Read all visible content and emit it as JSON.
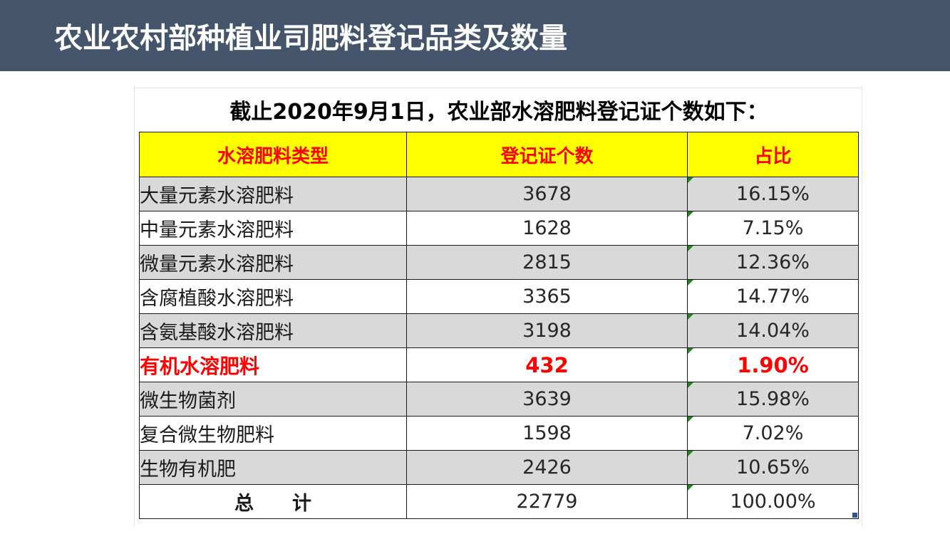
{
  "header": {
    "title": "农业农村部种植业司肥料登记品类及数量",
    "bg_color": "#44546a"
  },
  "caption": "截止2020年9月1日，农业部水溶肥料登记证个数如下：",
  "table": {
    "columns": [
      "水溶肥料类型",
      "登记证个数",
      "占比"
    ],
    "header_bg": "#ffff00",
    "header_color": "#ff0000",
    "rows": [
      {
        "type": "大量元素水溶肥料",
        "count": "3678",
        "share": "16.15%"
      },
      {
        "type": "中量元素水溶肥料",
        "count": "1628",
        "share": "7.15%"
      },
      {
        "type": "微量元素水溶肥料",
        "count": "2815",
        "share": "12.36%"
      },
      {
        "type": "含腐植酸水溶肥料",
        "count": "3365",
        "share": "14.77%"
      },
      {
        "type": "含氨基酸水溶肥料",
        "count": "3198",
        "share": "14.04%"
      },
      {
        "type": "有机水溶肥料",
        "count": "432",
        "share": "1.90%"
      },
      {
        "type": "微生物菌剂",
        "count": "3639",
        "share": "15.98%"
      },
      {
        "type": "复合微生物肥料",
        "count": "1598",
        "share": "7.02%"
      },
      {
        "type": "生物有机肥",
        "count": "2426",
        "share": "10.65%"
      }
    ],
    "total": {
      "label": "总　　计",
      "count": "22779",
      "share": "100.00%"
    },
    "highlight_color": "#ff0000"
  }
}
